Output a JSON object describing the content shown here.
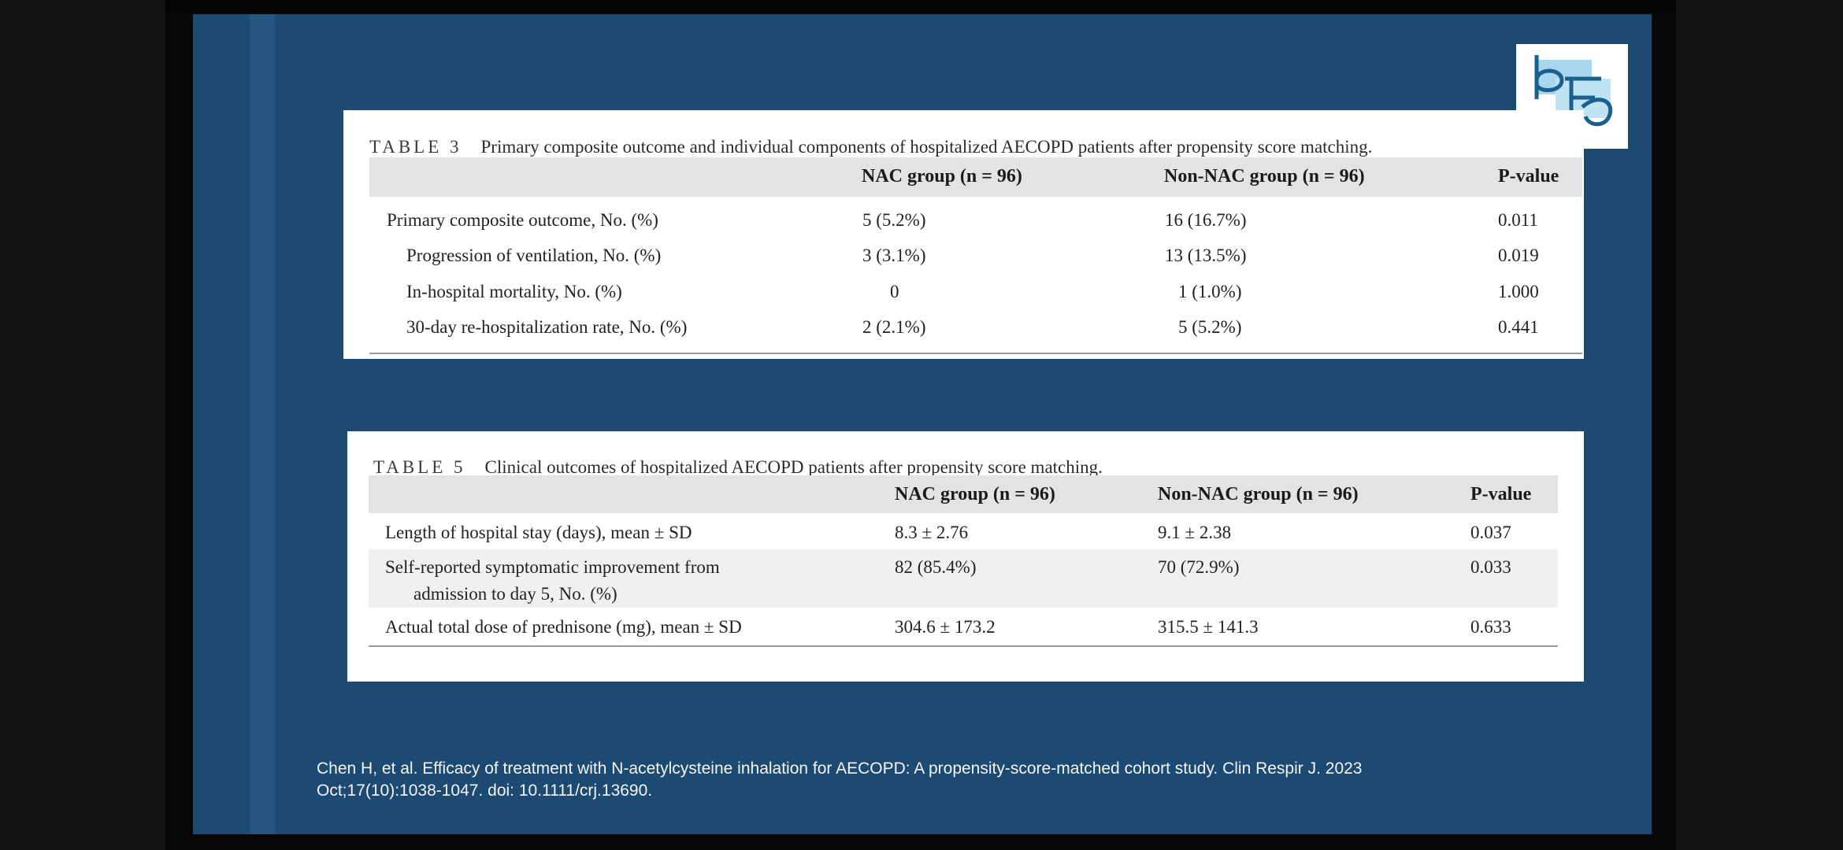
{
  "table3": {
    "label": "TABLE 3",
    "title": "Primary composite outcome and individual components of hospitalized AECOPD patients after propensity score matching.",
    "headers": {
      "nac": "NAC group (n = 96)",
      "non_nac": "Non-NAC group (n = 96)",
      "p": "P-value"
    },
    "rows": [
      {
        "label": "Primary composite outcome, No. (%)",
        "nac": "5 (5.2%)",
        "non_nac": "16 (16.7%)",
        "p": "0.011"
      },
      {
        "label": "Progression of ventilation, No. (%)",
        "nac": "3 (3.1%)",
        "non_nac": "13 (13.5%)",
        "p": "0.019"
      },
      {
        "label": "In-hospital mortality, No. (%)",
        "nac": "0",
        "non_nac": "1 (1.0%)",
        "p": "1.000"
      },
      {
        "label": "30-day re-hospitalization rate, No. (%)",
        "nac": "2 (2.1%)",
        "non_nac": "5 (5.2%)",
        "p": "0.441"
      }
    ]
  },
  "table5": {
    "label": "TABLE 5",
    "title": "Clinical outcomes of hospitalized AECOPD patients after propensity score matching.",
    "headers": {
      "nac": "NAC group (n = 96)",
      "non_nac": "Non-NAC group (n = 96)",
      "p": "P-value"
    },
    "rows": [
      {
        "label": "Length of hospital stay (days), mean ± SD",
        "nac": "8.3 ± 2.76",
        "non_nac": "9.1 ± 2.38",
        "p": "0.037"
      },
      {
        "label": "Self-reported symptomatic improvement from",
        "label2": "admission to day 5, No. (%)",
        "nac": "82 (85.4%)",
        "non_nac": "70 (72.9%)",
        "p": "0.033"
      },
      {
        "label": "Actual total dose of prednisone (mg), mean ± SD",
        "nac": "304.6 ± 173.2",
        "non_nac": "315.5 ± 141.3",
        "p": "0.633"
      }
    ]
  },
  "citation": {
    "line1": "Chen H, et al. Efficacy of treatment with N-acetylcysteine inhalation for AECOPD: A propensity-score-matched cohort study. Clin Respir J. 2023",
    "line2": "Oct;17(10):1038-1047. doi: 10.1111/crj.13690."
  },
  "logo": {
    "icon": "journal-logo-icon",
    "colors": [
      "#9fd3ea",
      "#1b5f8e"
    ]
  }
}
